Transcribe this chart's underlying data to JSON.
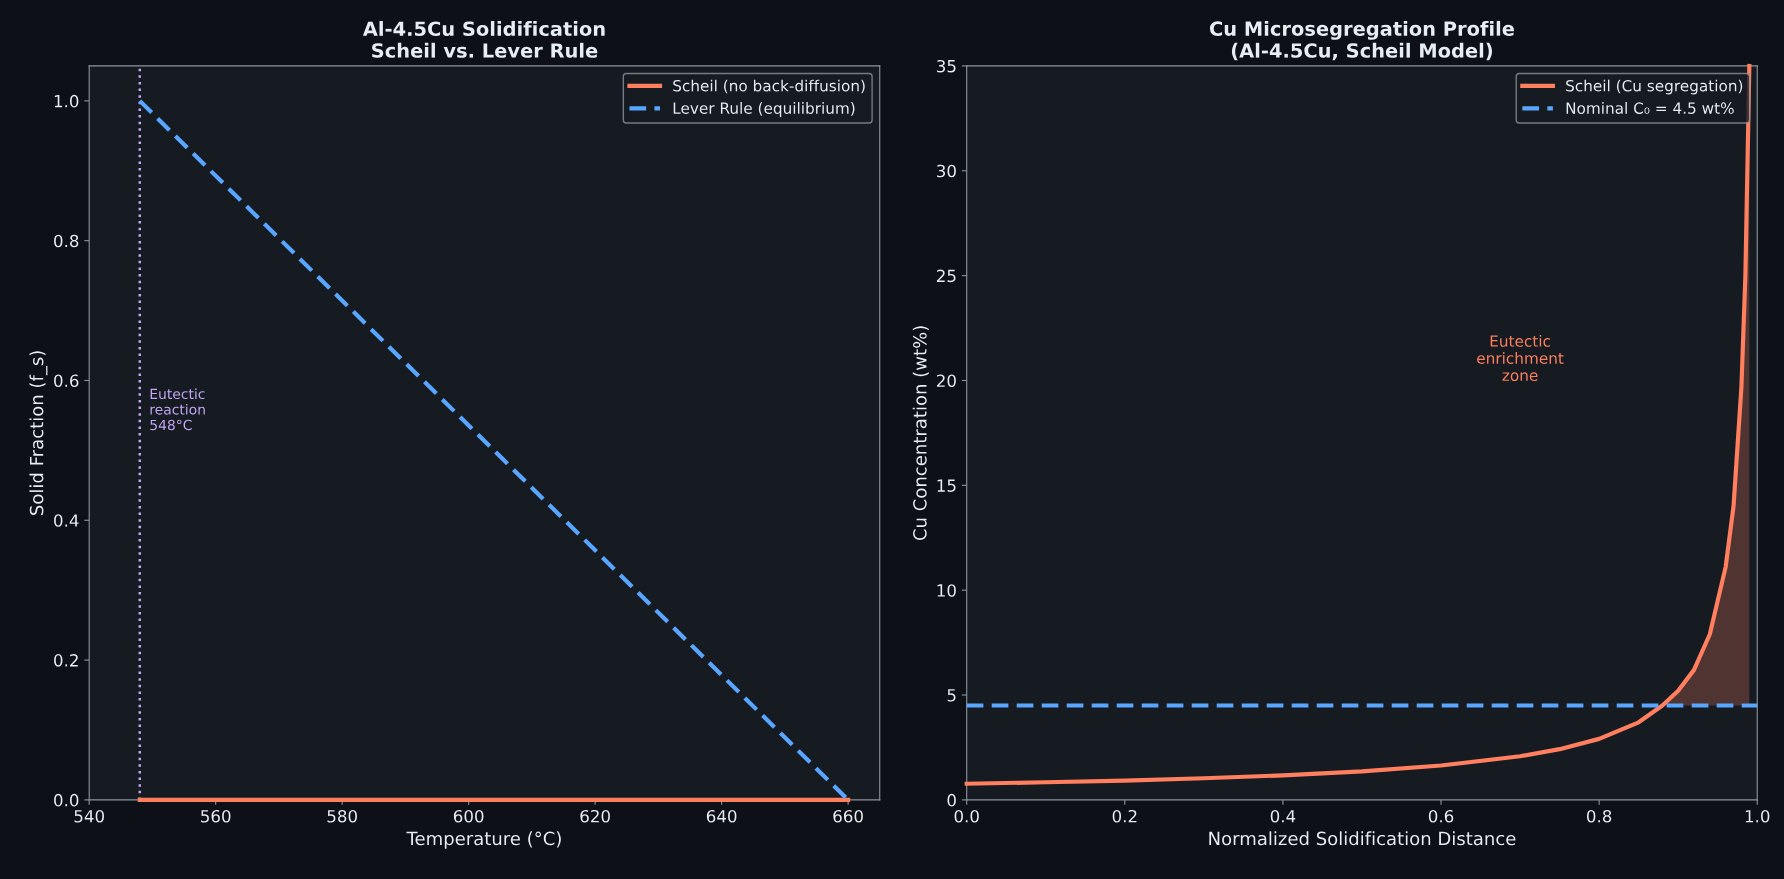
{
  "chart_data": [
    {
      "type": "line",
      "title": "Al-4.5Cu Solidification\nScheil vs. Lever Rule",
      "xlabel": "Temperature (°C)",
      "ylabel": "Solid Fraction (f_s)",
      "series": [
        {
          "name": "Scheil (no back-diffusion)",
          "color": "#ff7f5e",
          "x": [
            548,
            660
          ],
          "values": [
            0,
            0
          ],
          "line_style": "solid"
        },
        {
          "name": "Lever Rule (equilibrium)",
          "color": "#58a6ff",
          "x": [
            548,
            660
          ],
          "values": [
            1.0,
            0
          ],
          "line_style": "dashed"
        }
      ],
      "ref_lines": [
        {
          "axis": "x",
          "value": 548,
          "label": "Eutectic\nreaction\n548°C",
          "color": "#c3a6f5",
          "line_style": "dotted"
        }
      ],
      "xlim": [
        540,
        665
      ],
      "xticks": [
        540,
        560,
        580,
        600,
        620,
        640,
        660
      ],
      "ylim": [
        0,
        1.05
      ],
      "yticks": [
        {
          "value": 0,
          "label": "0.0"
        },
        0.2,
        0.4,
        0.6,
        0.8,
        {
          "value": 1,
          "label": "1.0"
        }
      ],
      "grid": false,
      "legend": "top right"
    },
    {
      "type": "line",
      "title": "Cu Microsegregation Profile\n(Al-4.5Cu, Scheil Model)",
      "xlabel": "Normalized Solidification Distance",
      "ylabel": "Cu Concentration (wt%)",
      "series": [
        {
          "name": "Scheil (Cu segregation)",
          "color": "#ff7f5e",
          "line_style": "solid",
          "x": [
            0,
            0.1,
            0.2,
            0.3,
            0.4,
            0.5,
            0.6,
            0.7,
            0.75,
            0.8,
            0.85,
            0.88,
            0.9,
            0.92,
            0.94,
            0.96,
            0.97,
            0.98,
            0.985,
            0.99
          ],
          "values": [
            0.77,
            0.84,
            0.92,
            1.03,
            1.17,
            1.36,
            1.64,
            2.08,
            2.42,
            2.91,
            3.7,
            4.5,
            5.2,
            6.2,
            7.9,
            11.1,
            14.0,
            19.7,
            25.0,
            35.0
          ],
          "lower": [
            null,
            null,
            null,
            null,
            null,
            null,
            null,
            null,
            null,
            null,
            null,
            4.5,
            4.5,
            4.5,
            4.5,
            4.5,
            4.5,
            4.5,
            4.5,
            4.5
          ],
          "upper": [
            null,
            null,
            null,
            null,
            null,
            null,
            null,
            null,
            null,
            null,
            null,
            4.5,
            5.2,
            6.2,
            7.9,
            11.1,
            14.0,
            19.7,
            25.0,
            35.0
          ]
        },
        {
          "name": "Nominal C₀ = 4.5 wt%",
          "color": "#58a6ff",
          "line_style": "dashed",
          "x": [
            0,
            1
          ],
          "values": [
            4.5,
            4.5
          ]
        }
      ],
      "annotations": [
        "Eutectic\nenrichment\nzone"
      ],
      "xlim": [
        0,
        1
      ],
      "xticks": [
        {
          "value": 0,
          "label": "0.0"
        },
        0.2,
        0.4,
        0.6,
        0.8,
        {
          "value": 1,
          "label": "1.0"
        }
      ],
      "ylim": [
        0,
        35
      ],
      "yticks": [
        0,
        5,
        10,
        15,
        20,
        25,
        30,
        35
      ],
      "grid": false,
      "legend": "top right"
    }
  ]
}
